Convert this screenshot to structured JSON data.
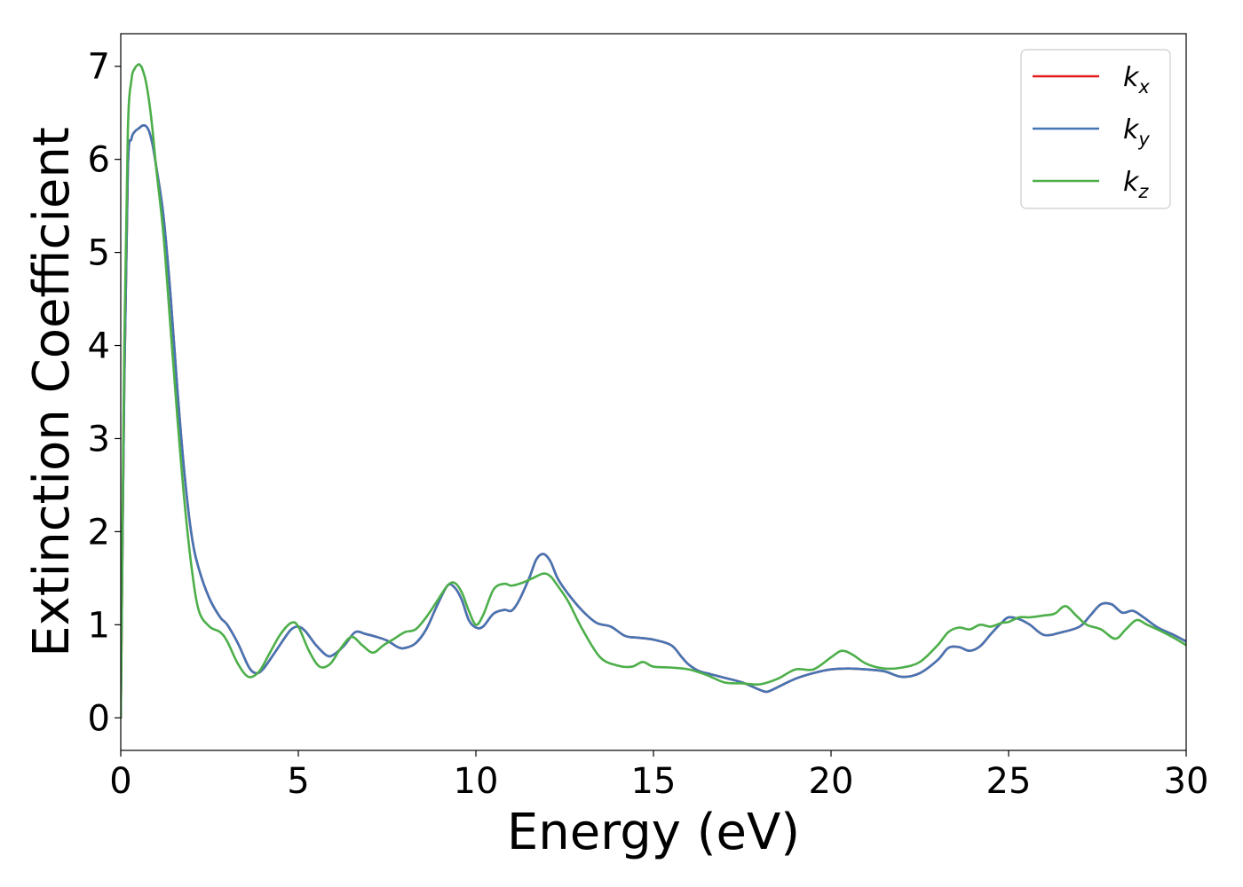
{
  "chart_data": {
    "type": "line",
    "xlabel": "Energy (eV)",
    "ylabel": "Extinction Coefficient",
    "xlim": [
      0,
      30
    ],
    "ylim": [
      -0.35,
      7.35
    ],
    "xticks": [
      0,
      5,
      10,
      15,
      20,
      25,
      30
    ],
    "yticks": [
      0,
      1,
      2,
      3,
      4,
      5,
      6,
      7
    ],
    "grid": false,
    "legend_position": "top-right",
    "series": [
      {
        "name": "k",
        "subscript": "x",
        "color": "#e41a1c",
        "x": [
          0,
          0.1,
          0.2,
          0.3,
          0.4,
          0.5,
          0.6,
          0.7,
          0.8,
          0.9,
          1.0,
          1.2,
          1.4,
          1.6,
          1.8,
          2.0,
          2.2,
          2.5,
          2.8,
          3.0,
          3.3,
          3.6,
          3.8,
          4.0,
          4.3,
          4.6,
          4.8,
          5.0,
          5.2,
          5.5,
          5.8,
          6.0,
          6.3,
          6.6,
          6.9,
          7.2,
          7.5,
          7.8,
          8.0,
          8.3,
          8.6,
          8.9,
          9.2,
          9.4,
          9.6,
          9.8,
          10.0,
          10.2,
          10.5,
          10.8,
          11.0,
          11.2,
          11.5,
          11.7,
          11.9,
          12.1,
          12.3,
          12.6,
          13.0,
          13.4,
          13.8,
          14.2,
          14.6,
          15.0,
          15.5,
          15.8,
          16.0,
          16.3,
          16.6,
          17.0,
          17.5,
          18.0,
          18.2,
          18.5,
          19.0,
          19.5,
          20.0,
          20.5,
          21.0,
          21.5,
          22.0,
          22.5,
          23.0,
          23.3,
          23.6,
          23.9,
          24.2,
          24.5,
          24.8,
          25.0,
          25.3,
          25.6,
          26.0,
          26.5,
          27.0,
          27.3,
          27.6,
          27.9,
          28.2,
          28.5,
          28.8,
          29.2,
          29.6,
          30.0
        ],
        "values": [
          0,
          3.6,
          5.9,
          6.22,
          6.3,
          6.33,
          6.36,
          6.36,
          6.3,
          6.15,
          5.92,
          5.4,
          4.55,
          3.5,
          2.6,
          1.95,
          1.6,
          1.28,
          1.08,
          1.0,
          0.8,
          0.55,
          0.48,
          0.52,
          0.68,
          0.85,
          0.95,
          0.98,
          0.93,
          0.78,
          0.67,
          0.68,
          0.78,
          0.92,
          0.9,
          0.87,
          0.83,
          0.76,
          0.75,
          0.8,
          0.95,
          1.2,
          1.42,
          1.4,
          1.27,
          1.05,
          0.97,
          0.98,
          1.12,
          1.16,
          1.15,
          1.25,
          1.5,
          1.7,
          1.76,
          1.68,
          1.5,
          1.33,
          1.15,
          1.02,
          0.98,
          0.88,
          0.86,
          0.84,
          0.78,
          0.65,
          0.57,
          0.5,
          0.47,
          0.43,
          0.38,
          0.3,
          0.28,
          0.33,
          0.42,
          0.48,
          0.52,
          0.53,
          0.52,
          0.5,
          0.44,
          0.48,
          0.62,
          0.75,
          0.76,
          0.72,
          0.77,
          0.9,
          1.02,
          1.08,
          1.06,
          1.0,
          0.89,
          0.92,
          0.98,
          1.1,
          1.22,
          1.22,
          1.13,
          1.15,
          1.08,
          0.97,
          0.9,
          0.82
        ]
      },
      {
        "name": "k",
        "subscript": "y",
        "color": "#4575b4",
        "x": [
          0,
          0.1,
          0.2,
          0.3,
          0.4,
          0.5,
          0.6,
          0.7,
          0.8,
          0.9,
          1.0,
          1.2,
          1.4,
          1.6,
          1.8,
          2.0,
          2.2,
          2.5,
          2.8,
          3.0,
          3.3,
          3.6,
          3.8,
          4.0,
          4.3,
          4.6,
          4.8,
          5.0,
          5.2,
          5.5,
          5.8,
          6.0,
          6.3,
          6.6,
          6.9,
          7.2,
          7.5,
          7.8,
          8.0,
          8.3,
          8.6,
          8.9,
          9.2,
          9.4,
          9.6,
          9.8,
          10.0,
          10.2,
          10.5,
          10.8,
          11.0,
          11.2,
          11.5,
          11.7,
          11.9,
          12.1,
          12.3,
          12.6,
          13.0,
          13.4,
          13.8,
          14.2,
          14.6,
          15.0,
          15.5,
          15.8,
          16.0,
          16.3,
          16.6,
          17.0,
          17.5,
          18.0,
          18.2,
          18.5,
          19.0,
          19.5,
          20.0,
          20.5,
          21.0,
          21.5,
          22.0,
          22.5,
          23.0,
          23.3,
          23.6,
          23.9,
          24.2,
          24.5,
          24.8,
          25.0,
          25.3,
          25.6,
          26.0,
          26.5,
          27.0,
          27.3,
          27.6,
          27.9,
          28.2,
          28.5,
          28.8,
          29.2,
          29.6,
          30.0
        ],
        "values": [
          0,
          3.6,
          5.9,
          6.22,
          6.3,
          6.33,
          6.36,
          6.36,
          6.3,
          6.15,
          5.92,
          5.4,
          4.55,
          3.5,
          2.6,
          1.95,
          1.6,
          1.28,
          1.08,
          1.0,
          0.8,
          0.55,
          0.48,
          0.52,
          0.68,
          0.85,
          0.95,
          0.98,
          0.93,
          0.78,
          0.67,
          0.68,
          0.78,
          0.92,
          0.9,
          0.87,
          0.83,
          0.76,
          0.75,
          0.8,
          0.95,
          1.2,
          1.42,
          1.4,
          1.27,
          1.05,
          0.97,
          0.98,
          1.12,
          1.16,
          1.15,
          1.25,
          1.5,
          1.7,
          1.76,
          1.68,
          1.5,
          1.33,
          1.15,
          1.02,
          0.98,
          0.88,
          0.86,
          0.84,
          0.78,
          0.65,
          0.57,
          0.5,
          0.47,
          0.43,
          0.38,
          0.3,
          0.28,
          0.33,
          0.42,
          0.48,
          0.52,
          0.53,
          0.52,
          0.5,
          0.44,
          0.48,
          0.62,
          0.75,
          0.76,
          0.72,
          0.77,
          0.9,
          1.02,
          1.08,
          1.06,
          1.0,
          0.89,
          0.92,
          0.98,
          1.1,
          1.22,
          1.22,
          1.13,
          1.15,
          1.08,
          0.97,
          0.9,
          0.82
        ]
      },
      {
        "name": "k",
        "subscript": "z",
        "color": "#4daf4a",
        "x": [
          0,
          0.1,
          0.2,
          0.3,
          0.4,
          0.5,
          0.55,
          0.6,
          0.7,
          0.8,
          0.9,
          1.0,
          1.2,
          1.4,
          1.6,
          1.8,
          2.0,
          2.2,
          2.5,
          2.8,
          3.0,
          3.3,
          3.6,
          3.9,
          4.2,
          4.5,
          4.8,
          5.0,
          5.3,
          5.6,
          5.9,
          6.2,
          6.5,
          6.8,
          7.1,
          7.4,
          7.7,
          8.0,
          8.3,
          8.6,
          8.9,
          9.2,
          9.4,
          9.6,
          9.8,
          10.0,
          10.2,
          10.5,
          10.8,
          11.0,
          11.3,
          11.6,
          11.9,
          12.1,
          12.3,
          12.6,
          13.0,
          13.5,
          14.0,
          14.4,
          14.7,
          15.0,
          15.5,
          16.0,
          16.5,
          17.0,
          17.5,
          18.0,
          18.5,
          19.0,
          19.5,
          20.0,
          20.3,
          20.6,
          21.0,
          21.5,
          22.0,
          22.5,
          23.0,
          23.3,
          23.6,
          23.9,
          24.2,
          24.5,
          24.8,
          25.0,
          25.3,
          25.6,
          26.0,
          26.3,
          26.6,
          26.9,
          27.2,
          27.6,
          28.0,
          28.3,
          28.6,
          28.9,
          29.3,
          29.7,
          30.0
        ],
        "values": [
          0,
          4.0,
          6.3,
          6.85,
          6.98,
          7.02,
          7.01,
          6.98,
          6.85,
          6.62,
          6.3,
          5.9,
          5.2,
          4.2,
          3.2,
          2.3,
          1.6,
          1.15,
          0.98,
          0.92,
          0.82,
          0.58,
          0.44,
          0.5,
          0.7,
          0.9,
          1.02,
          0.98,
          0.72,
          0.55,
          0.58,
          0.75,
          0.87,
          0.78,
          0.7,
          0.78,
          0.85,
          0.92,
          0.95,
          1.08,
          1.25,
          1.42,
          1.45,
          1.35,
          1.15,
          1.0,
          1.1,
          1.38,
          1.44,
          1.42,
          1.45,
          1.5,
          1.55,
          1.52,
          1.42,
          1.25,
          0.95,
          0.65,
          0.56,
          0.55,
          0.6,
          0.55,
          0.54,
          0.52,
          0.46,
          0.38,
          0.37,
          0.36,
          0.42,
          0.52,
          0.52,
          0.65,
          0.72,
          0.68,
          0.58,
          0.53,
          0.54,
          0.6,
          0.78,
          0.92,
          0.97,
          0.95,
          1.0,
          0.98,
          1.02,
          1.03,
          1.08,
          1.08,
          1.1,
          1.12,
          1.2,
          1.1,
          1.0,
          0.95,
          0.85,
          0.95,
          1.05,
          1.0,
          0.93,
          0.85,
          0.78
        ]
      }
    ]
  }
}
